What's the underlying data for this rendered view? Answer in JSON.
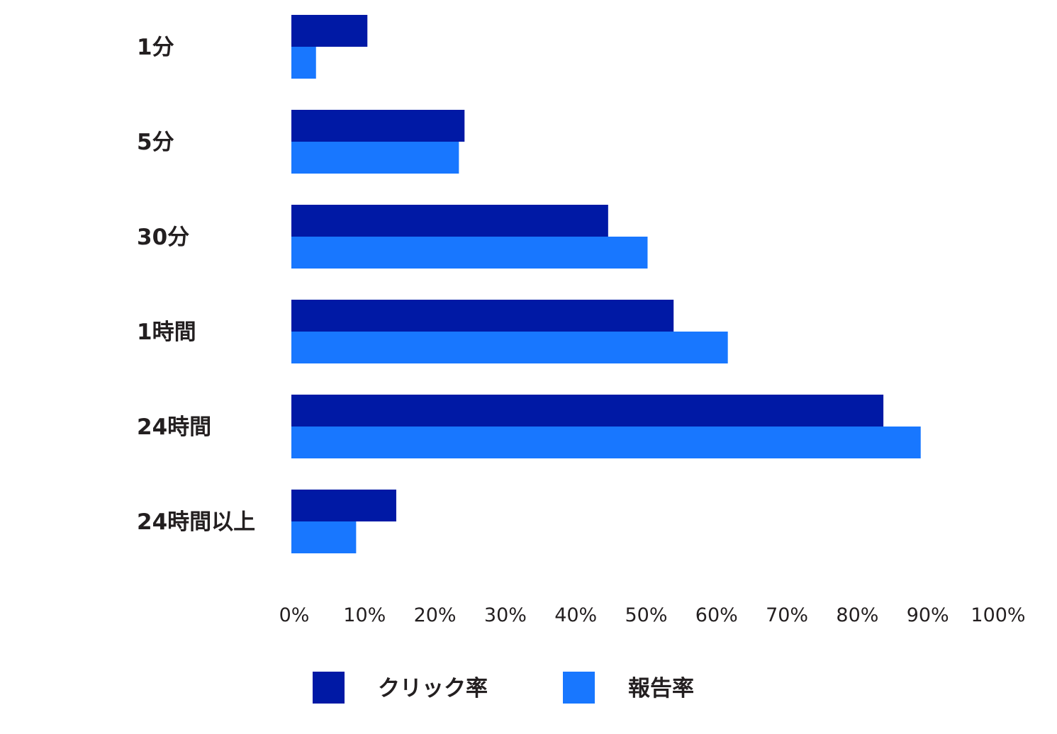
{
  "chart_data": {
    "type": "bar",
    "orientation": "horizontal",
    "categories": [
      "1分",
      "5分",
      "30分",
      "1時間",
      "24時間",
      "24時間以上"
    ],
    "series": [
      {
        "name": "クリック率",
        "color": "#0019a5",
        "values": [
          10.8,
          24.6,
          45.0,
          54.3,
          84.1,
          14.9
        ]
      },
      {
        "name": "報告率",
        "color": "#1877ff",
        "values": [
          3.5,
          23.8,
          50.6,
          62.0,
          89.4,
          9.2
        ]
      }
    ],
    "x_ticks": [
      "0%",
      "10%",
      "20%",
      "30%",
      "40%",
      "50%",
      "60%",
      "70%",
      "80%",
      "90%",
      "100%"
    ],
    "xlim": [
      0,
      100
    ],
    "xlabel": "",
    "ylabel": "",
    "grid": false,
    "legend_position": "bottom"
  }
}
